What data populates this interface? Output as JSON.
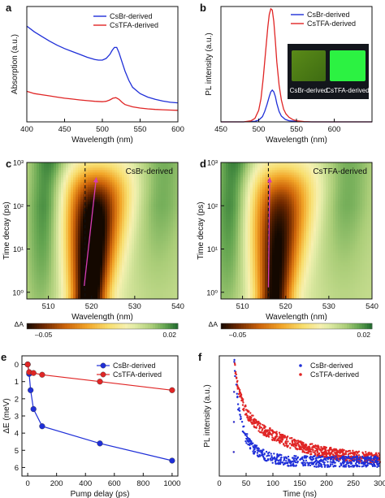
{
  "colors": {
    "csbr": "#1f2fd8",
    "cstfa": "#e02525",
    "axis": "#111111",
    "marker_line": "#111111",
    "arrow": "#d63cb4"
  },
  "colorbar": {
    "title": "ΔA",
    "min_label": "–0.05",
    "max_label": "0.02"
  },
  "chart_data": [
    {
      "id": "a",
      "panel_label": "a",
      "type": "line",
      "xlabel": "Wavelength (nm)",
      "ylabel": "Absorption (a.u.)",
      "xlim": [
        400,
        600
      ],
      "ylim": [
        0,
        1
      ],
      "xticks": [
        400,
        450,
        500,
        550,
        600
      ],
      "yticks": [],
      "legend": {
        "position": "top-right",
        "entries": [
          "CsBr-derived",
          "CsTFA-derived"
        ]
      },
      "series": [
        {
          "name": "CsBr-derived",
          "color_key": "csbr",
          "x": [
            400,
            410,
            420,
            430,
            440,
            450,
            460,
            470,
            480,
            490,
            495,
            500,
            505,
            510,
            513,
            516,
            519,
            522,
            526,
            530,
            535,
            540,
            550,
            560,
            570,
            580,
            590,
            600
          ],
          "y": [
            0.83,
            0.78,
            0.74,
            0.7,
            0.665,
            0.635,
            0.61,
            0.585,
            0.56,
            0.54,
            0.535,
            0.535,
            0.55,
            0.585,
            0.62,
            0.645,
            0.645,
            0.6,
            0.52,
            0.44,
            0.36,
            0.3,
            0.245,
            0.215,
            0.195,
            0.18,
            0.17,
            0.165
          ]
        },
        {
          "name": "CsTFA-derived",
          "color_key": "cstfa",
          "x": [
            400,
            410,
            420,
            430,
            440,
            450,
            460,
            470,
            480,
            490,
            500,
            505,
            510,
            514,
            518,
            522,
            526,
            530,
            540,
            550,
            560,
            570,
            580,
            590,
            600
          ],
          "y": [
            0.265,
            0.245,
            0.235,
            0.225,
            0.215,
            0.205,
            0.198,
            0.19,
            0.184,
            0.178,
            0.175,
            0.178,
            0.19,
            0.205,
            0.21,
            0.195,
            0.17,
            0.15,
            0.13,
            0.12,
            0.113,
            0.108,
            0.105,
            0.102,
            0.1
          ]
        }
      ]
    },
    {
      "id": "b",
      "panel_label": "b",
      "type": "line",
      "xlabel": "Wavelength (nm)",
      "ylabel": "PL intensity (a.u.)",
      "xlim": [
        450,
        650
      ],
      "ylim": [
        0,
        1
      ],
      "xticks": [
        450,
        500,
        550,
        600
      ],
      "yticks": [],
      "legend": {
        "position": "top-right",
        "entries": [
          "CsBr-derived",
          "CsTFA-derived"
        ]
      },
      "inset": {
        "position": "right",
        "caption_left": "CsBr-derived",
        "caption_right": "CsTFA-derived"
      },
      "series": [
        {
          "name": "CsBr-derived",
          "color_key": "csbr",
          "x": [
            450,
            480,
            495,
            500,
            505,
            508,
            511,
            514,
            516,
            518,
            520,
            522,
            524,
            527,
            530,
            535,
            540,
            550,
            560,
            650
          ],
          "y": [
            0.0,
            0.0,
            0.005,
            0.015,
            0.045,
            0.09,
            0.15,
            0.22,
            0.26,
            0.275,
            0.26,
            0.22,
            0.16,
            0.09,
            0.05,
            0.022,
            0.01,
            0.004,
            0.0,
            0.0
          ]
        },
        {
          "name": "CsTFA-derived",
          "color_key": "cstfa",
          "x": [
            450,
            480,
            490,
            495,
            500,
            503,
            506,
            509,
            512,
            514,
            516,
            518,
            520,
            522,
            524,
            527,
            530,
            533,
            536,
            540,
            545,
            550,
            560,
            570,
            650
          ],
          "y": [
            0.0,
            0.0,
            0.01,
            0.03,
            0.1,
            0.2,
            0.38,
            0.6,
            0.82,
            0.93,
            0.98,
            0.97,
            0.87,
            0.7,
            0.52,
            0.32,
            0.19,
            0.11,
            0.07,
            0.04,
            0.02,
            0.01,
            0.003,
            0.0,
            0.0
          ]
        }
      ]
    },
    {
      "id": "c",
      "panel_label": "c",
      "type": "heatmap",
      "label": "CsBr-derived",
      "xlabel": "Wavelength (nm)",
      "ylabel": "Time decay (ps)",
      "xlim": [
        505,
        540
      ],
      "ylim": [
        0.7,
        1000
      ],
      "yscale": "log",
      "xticks": [
        510,
        520,
        530,
        540
      ],
      "yticks_labels": [
        "10⁰",
        "10¹",
        "10²",
        "10³"
      ],
      "yticks": [
        1,
        10,
        100,
        1000
      ],
      "dashed_line_x": 518.5,
      "arrow": {
        "from": [
          518.3,
          1.4
        ],
        "to": [
          521.1,
          450
        ]
      },
      "peak_center_nm": 519.5,
      "colorscale": {
        "min": -0.05,
        "max": 0.02
      }
    },
    {
      "id": "d",
      "panel_label": "d",
      "type": "heatmap",
      "label": "CsTFA-derived",
      "xlabel": "Wavelength (nm)",
      "ylabel": "Time decay (ps)",
      "xlim": [
        505,
        540
      ],
      "ylim": [
        0.7,
        1000
      ],
      "yscale": "log",
      "xticks": [
        510,
        520,
        530,
        540
      ],
      "yticks_labels": [
        "10⁰",
        "10¹",
        "10²",
        "10³"
      ],
      "yticks": [
        1,
        10,
        100,
        1000
      ],
      "dashed_line_x": 516,
      "arrow": {
        "from": [
          516,
          1.3
        ],
        "to": [
          516.3,
          450
        ]
      },
      "peak_center_nm": 517.5,
      "colorscale": {
        "min": -0.05,
        "max": 0.02
      }
    },
    {
      "id": "e",
      "panel_label": "e",
      "type": "line",
      "xlabel": "Pump delay (ps)",
      "ylabel": "ΔE (meV)",
      "xlim": [
        -40,
        1040
      ],
      "ylim": [
        6.5,
        -0.5
      ],
      "xticks": [
        0,
        200,
        400,
        600,
        800,
        1000
      ],
      "yticks": [
        0,
        1,
        2,
        3,
        4,
        5,
        6
      ],
      "legend": {
        "position": "top-right",
        "entries": [
          "CsBr-derived",
          "CsTFA-derived"
        ]
      },
      "series": [
        {
          "name": "CsBr-derived",
          "color_key": "csbr",
          "x": [
            0,
            10,
            20,
            40,
            100,
            500,
            1000
          ],
          "y": [
            0.0,
            0.55,
            1.5,
            2.6,
            3.6,
            4.6,
            5.6
          ]
        },
        {
          "name": "CsTFA-derived",
          "color_key": "cstfa",
          "x": [
            0,
            10,
            40,
            100,
            500,
            1000
          ],
          "y": [
            0.0,
            0.45,
            0.5,
            0.6,
            1.0,
            1.5
          ]
        }
      ]
    },
    {
      "id": "f",
      "panel_label": "f",
      "type": "scatter",
      "xlabel": "Time (ns)",
      "ylabel": "PL intensity (a.u.)",
      "xlim": [
        0,
        300
      ],
      "ylim": [
        0,
        1
      ],
      "xticks": [
        0,
        50,
        100,
        150,
        200,
        250,
        300
      ],
      "yticks": [],
      "legend": {
        "position": "top-right",
        "entries": [
          "CsBr-derived",
          "CsTFA-derived"
        ]
      },
      "series": [
        {
          "name": "CsBr-derived",
          "color_key": "csbr",
          "onset_ns": 28,
          "peak": 0.98,
          "decay_fast_ns": 6,
          "decay_slow_ns": 25,
          "floor": 0.12,
          "points": 520
        },
        {
          "name": "CsTFA-derived",
          "color_key": "cstfa",
          "onset_ns": 28,
          "peak": 0.98,
          "decay_fast_ns": 10,
          "decay_slow_ns": 95,
          "floor": 0.12,
          "points": 760
        }
      ]
    }
  ]
}
